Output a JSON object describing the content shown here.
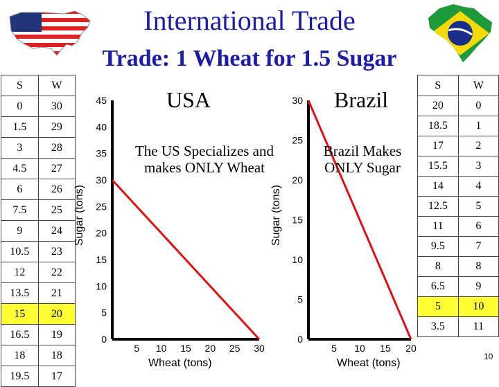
{
  "header": {
    "title": "International Trade",
    "subtitle": "Trade: 1 Wheat for 1.5 Sugar"
  },
  "colors": {
    "title": "#1c1ca8",
    "curve": "#e01010",
    "highlight": "#ffff33"
  },
  "icons": {
    "left": "usa-flag-map-icon",
    "right": "brazil-flag-map-icon"
  },
  "usa_table": {
    "headers": [
      "S",
      "W"
    ],
    "rows": [
      [
        "0",
        "30"
      ],
      [
        "1.5",
        "29"
      ],
      [
        "3",
        "28"
      ],
      [
        "4.5",
        "27"
      ],
      [
        "6",
        "26"
      ],
      [
        "7.5",
        "25"
      ],
      [
        "9",
        "24"
      ],
      [
        "10.5",
        "23"
      ],
      [
        "12",
        "22"
      ],
      [
        "13.5",
        "21"
      ],
      [
        "15",
        "20"
      ],
      [
        "16.5",
        "19"
      ],
      [
        "18",
        "18"
      ],
      [
        "19.5",
        "17"
      ]
    ],
    "highlight_row": 10
  },
  "brazil_table": {
    "headers": [
      "S",
      "W"
    ],
    "rows": [
      [
        "20",
        "0"
      ],
      [
        "18.5",
        "1"
      ],
      [
        "17",
        "2"
      ],
      [
        "15.5",
        "3"
      ],
      [
        "14",
        "4"
      ],
      [
        "12.5",
        "5"
      ],
      [
        "11",
        "6"
      ],
      [
        "9.5",
        "7"
      ],
      [
        "8",
        "8"
      ],
      [
        "6.5",
        "9"
      ],
      [
        "5",
        "10"
      ],
      [
        "3.5",
        "11"
      ]
    ],
    "highlight_row": 10
  },
  "usa_chart": {
    "title": "USA",
    "note_line1": "The US Specializes and",
    "note_line2": "makes ONLY Wheat",
    "xlabel": "Wheat (tons)",
    "ylabel": "Sugar (tons)",
    "y_ticks": [
      "0",
      "5",
      "10",
      "15",
      "20",
      "25",
      "30",
      "35",
      "40",
      "45"
    ],
    "x_ticks": [
      "5",
      "10",
      "15",
      "20",
      "25",
      "30"
    ]
  },
  "brazil_chart": {
    "title": "Brazil",
    "note_line1": "Brazil Makes",
    "note_line2": "ONLY Sugar",
    "xlabel": "Wheat (tons)",
    "ylabel": "Sugar (tons)",
    "y_ticks": [
      "0",
      "5",
      "10",
      "15",
      "20",
      "25",
      "30"
    ],
    "x_ticks": [
      "5",
      "10",
      "15",
      "20"
    ]
  },
  "chart_data": [
    {
      "type": "line",
      "title": "USA",
      "xlabel": "Wheat (tons)",
      "ylabel": "Sugar (tons)",
      "x": [
        0,
        30
      ],
      "y": [
        30,
        0
      ],
      "xlim": [
        0,
        30
      ],
      "ylim": [
        0,
        45
      ]
    },
    {
      "type": "line",
      "title": "Brazil",
      "xlabel": "Wheat (tons)",
      "ylabel": "Sugar (tons)",
      "x": [
        0,
        20
      ],
      "y": [
        30,
        0
      ],
      "xlim": [
        0,
        20
      ],
      "ylim": [
        0,
        30
      ]
    }
  ],
  "page_number": "10"
}
